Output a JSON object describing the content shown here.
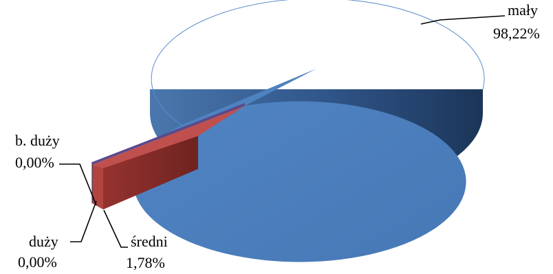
{
  "chart_data": {
    "type": "pie",
    "style": "3d-exploded",
    "categories": [
      "mały",
      "średni",
      "duży",
      "b. duży"
    ],
    "values": [
      98.22,
      1.78,
      0.0,
      0.0
    ],
    "labels": [
      {
        "name": "mały",
        "value": "98,22%"
      },
      {
        "name": "średni",
        "value": "1,78%"
      },
      {
        "name": "duży",
        "value": "0,00%"
      },
      {
        "name": "b. duży",
        "value": "0,00%"
      }
    ],
    "colors": [
      "#4f81bd",
      "#c0504d",
      "#9bbb59",
      "#8064a2"
    ],
    "title": "",
    "legend": "none"
  }
}
